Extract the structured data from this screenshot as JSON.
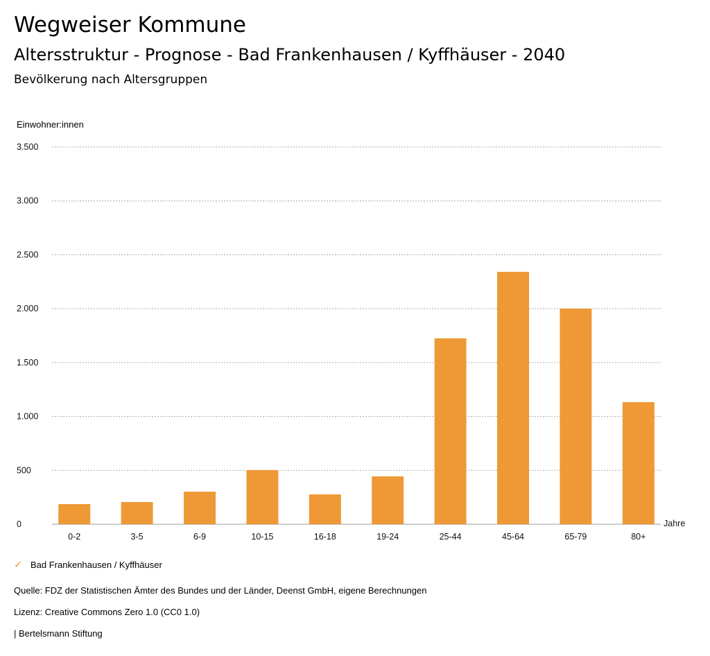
{
  "header": {
    "title": "Wegweiser Kommune",
    "subtitle": "Altersstruktur - Prognose - Bad Frankenhausen / Kyffhäuser - 2040",
    "section": "Bevölkerung nach Altersgruppen"
  },
  "chart_data": {
    "type": "bar",
    "ylabel": "Einwohner:innen",
    "xlabel": "Jahre",
    "ylim": [
      0,
      3500
    ],
    "yticks": [
      0,
      500,
      1000,
      1500,
      2000,
      2500,
      3000,
      3500
    ],
    "ytick_labels": [
      "0",
      "500",
      "1.000",
      "1.500",
      "2.000",
      "2.500",
      "3.000",
      "3.500"
    ],
    "categories": [
      "0-2",
      "3-5",
      "6-9",
      "10-15",
      "16-18",
      "19-24",
      "25-44",
      "45-64",
      "65-79",
      "80+"
    ],
    "series": [
      {
        "name": "Bad Frankenhausen / Kyffhäuser",
        "color": "#ee9936",
        "values": [
          187,
          206,
          302,
          502,
          277,
          444,
          1725,
          2342,
          2001,
          1133
        ]
      }
    ],
    "grid": true,
    "legend": "bottom-left"
  },
  "footer": {
    "source": "Quelle: FDZ der Statistischen Ämter des Bundes und der Länder, Deenst GmbH, eigene Berechnungen",
    "license": "Lizenz: Creative Commons Zero 1.0 (CC0 1.0)",
    "brand": "| Bertelsmann Stiftung"
  }
}
